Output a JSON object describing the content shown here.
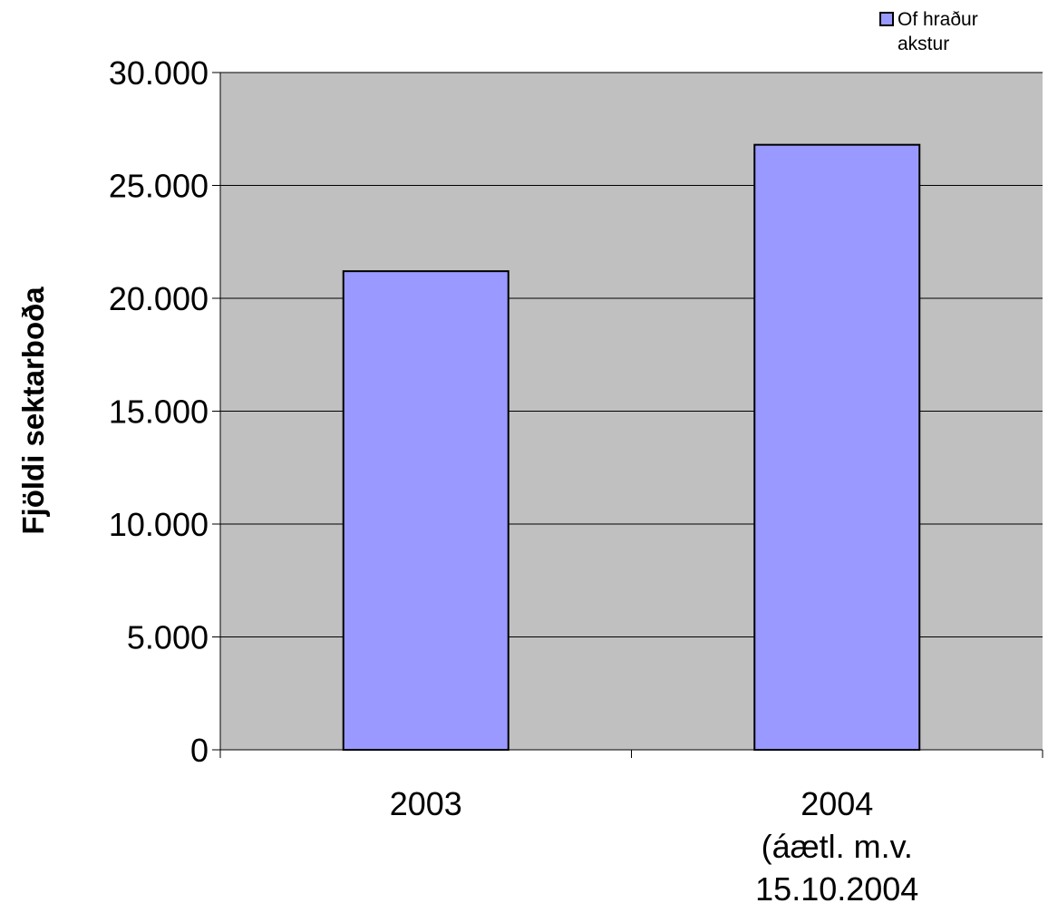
{
  "chart_data": {
    "type": "bar",
    "title": "",
    "xlabel": "",
    "ylabel": "Fjöldi sektarboða",
    "categories": [
      [
        "2003"
      ],
      [
        "2004",
        "(áætl. m.v.",
        "15.10.2004"
      ]
    ],
    "series": [
      {
        "name": "Of hraður akstur",
        "values": [
          21200,
          26800
        ],
        "color": "#9999ff"
      }
    ],
    "ylim": [
      0,
      30000
    ],
    "yticks": [
      {
        "value": 0,
        "label": "0"
      },
      {
        "value": 5000,
        "label": "5.000"
      },
      {
        "value": 10000,
        "label": "10.000"
      },
      {
        "value": 15000,
        "label": "15.000"
      },
      {
        "value": 20000,
        "label": "20.000"
      },
      {
        "value": 25000,
        "label": "25.000"
      },
      {
        "value": 30000,
        "label": "30.000"
      }
    ],
    "legend": {
      "position": "top-right",
      "label_lines": [
        "Of hraður",
        "akstur"
      ]
    },
    "grid": true,
    "plot_background": "#c0c0c0"
  }
}
